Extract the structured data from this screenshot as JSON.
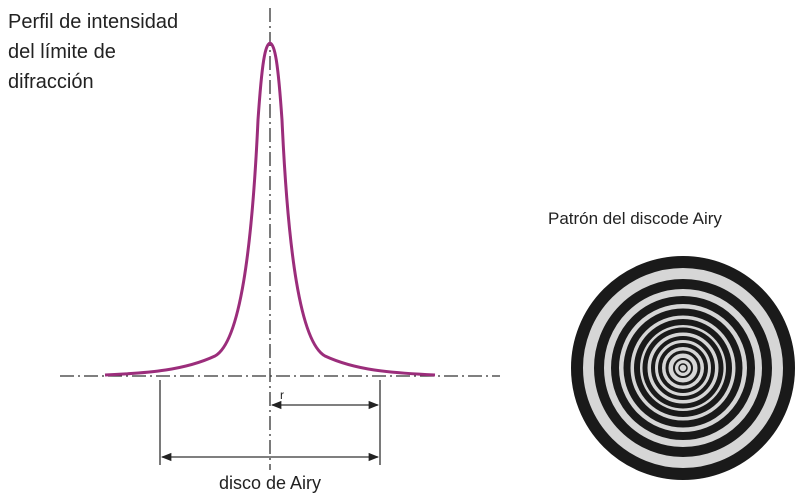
{
  "title_lines": [
    "Perfil de intensidad",
    "del límite de",
    "difracción"
  ],
  "radius_label": "r",
  "disk_label": "disco de Airy",
  "pattern_label": "Patrón del discode Airy"
}
